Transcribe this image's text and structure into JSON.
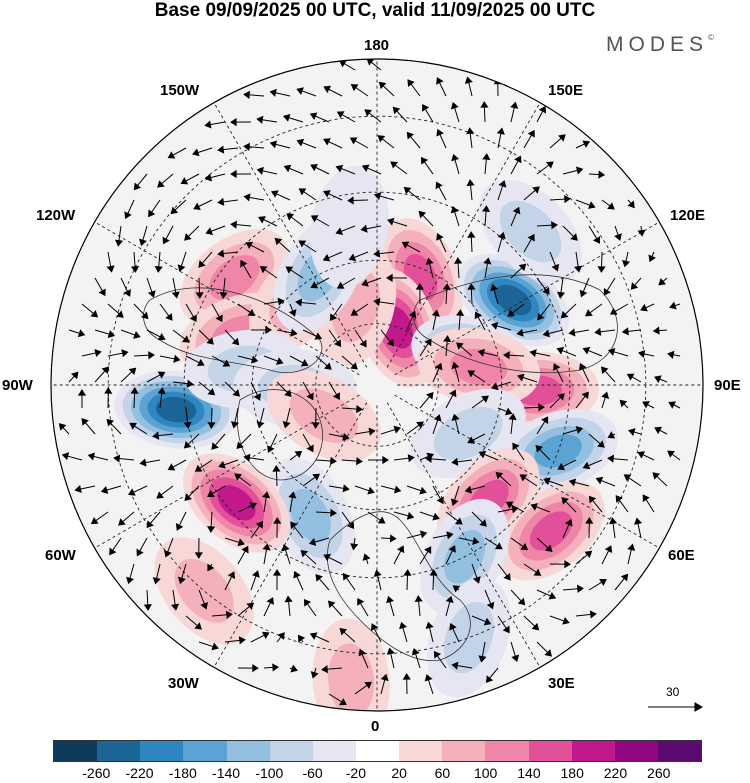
{
  "title": "Base 09/09/2025 00 UTC, valid 11/09/2025 00 UTC",
  "brand": "MODES",
  "brand_mark": "©",
  "longitude_labels": {
    "lon_180": "180",
    "lon_150e": "150E",
    "lon_120e": "120E",
    "lon_90e": "90E",
    "lon_60e": "60E",
    "lon_30e": "30E",
    "lon_0": "0",
    "lon_30w": "30W",
    "lon_60w": "60W",
    "lon_90w": "90W",
    "lon_120w": "120W",
    "lon_150w": "150W"
  },
  "reference_vector_label": "30",
  "colorbar": {
    "colors": [
      "#0e3a5c",
      "#1a6596",
      "#2f87c1",
      "#5aa3d3",
      "#93bfe0",
      "#c3d3e8",
      "#e6e6f2",
      "#ffffff",
      "#f8d7d7",
      "#f4b0bb",
      "#ef86a8",
      "#e2509a",
      "#c2188c",
      "#8e097f",
      "#5a0a72"
    ],
    "ticks": [
      "-260",
      "-220",
      "-180",
      "-140",
      "-100",
      "-60",
      "-20",
      "20",
      "60",
      "100",
      "140",
      "180",
      "220",
      "260"
    ]
  },
  "anomaly_centers": [
    {
      "lon": -127,
      "lat": 48,
      "value": 120
    },
    {
      "lon": -110,
      "lat": 55,
      "value": 100
    },
    {
      "lon": -138,
      "lat": 62,
      "value": 80
    },
    {
      "lon": 158,
      "lat": 62,
      "value": 140
    },
    {
      "lon": 160,
      "lat": 75,
      "value": 180
    },
    {
      "lon": -165,
      "lat": 70,
      "value": 60
    },
    {
      "lon": 122,
      "lat": 52,
      "value": -220
    },
    {
      "lon": 107,
      "lat": 66,
      "value": -140
    },
    {
      "lon": 88,
      "lat": 52,
      "value": 140
    },
    {
      "lon": 100,
      "lat": 65,
      "value": 100
    },
    {
      "lon": 70,
      "lat": 45,
      "value": -160
    },
    {
      "lon": 62,
      "lat": 65,
      "value": -60
    },
    {
      "lon": 44,
      "lat": 52,
      "value": 160
    },
    {
      "lon": 50,
      "lat": 38,
      "value": 140
    },
    {
      "lon": 27,
      "lat": 45,
      "value": -120
    },
    {
      "lon": -27,
      "lat": 55,
      "value": -120
    },
    {
      "lon": -50,
      "lat": 47,
      "value": 180
    },
    {
      "lon": -83,
      "lat": 43,
      "value": -220
    },
    {
      "lon": -97,
      "lat": 58,
      "value": -80
    },
    {
      "lon": -88,
      "lat": 70,
      "value": -60
    },
    {
      "lon": -152,
      "lat": 60,
      "value": -100
    },
    {
      "lon": -170,
      "lat": 52,
      "value": -40
    },
    {
      "lon": 20,
      "lat": 30,
      "value": -60
    },
    {
      "lon": -5,
      "lat": 25,
      "value": 60
    },
    {
      "lon": -60,
      "lat": 75,
      "value": 60
    },
    {
      "lon": 135,
      "lat": 40,
      "value": -60
    },
    {
      "lon": -40,
      "lat": 30,
      "value": 60
    }
  ]
}
